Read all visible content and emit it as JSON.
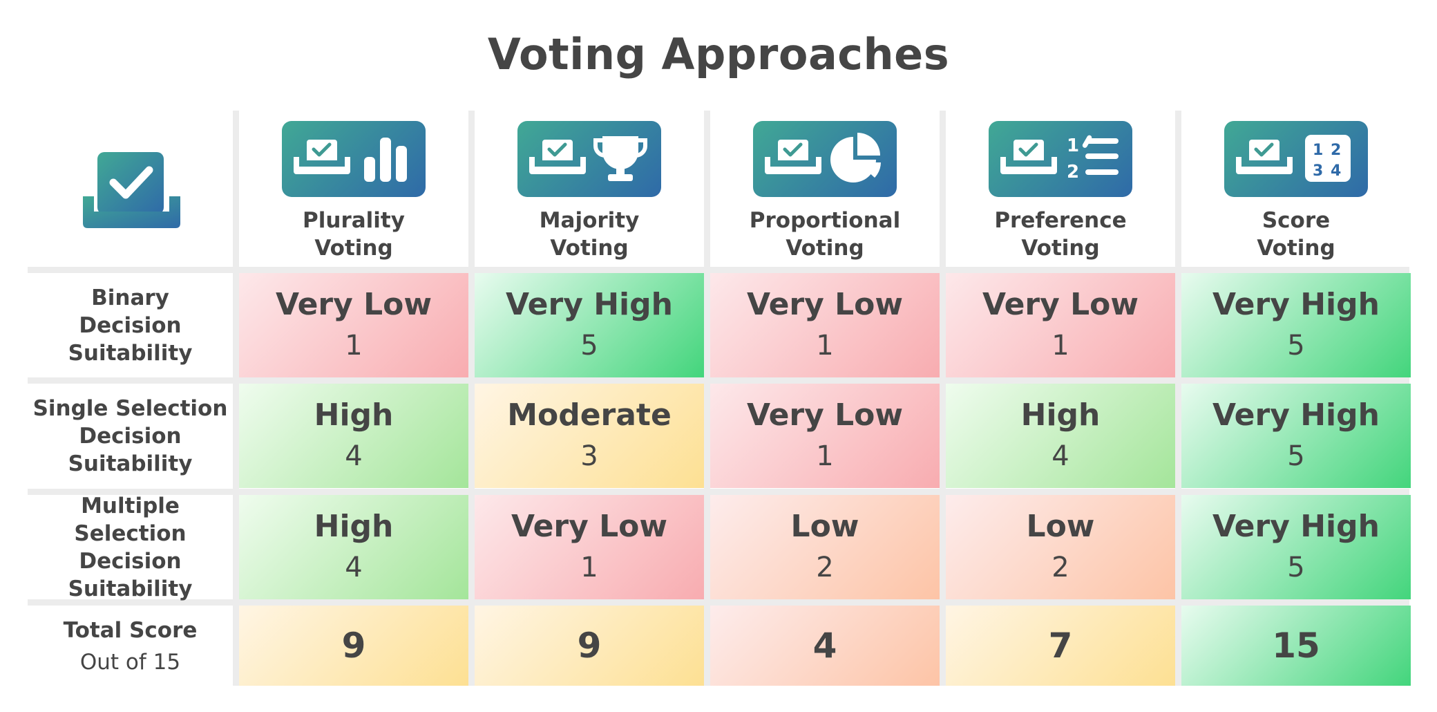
{
  "title": "Voting Approaches",
  "colors": {
    "very_low": "#f8acb0",
    "low": "#fdc4a6",
    "moderate": "#fde093",
    "high": "#a4e59a",
    "very_high": "#43d57c",
    "icon_gradient_start": "#41a895",
    "icon_gradient_end": "#2f6aa8",
    "text": "#454545"
  },
  "header_icon": "ballot-box-check-icon",
  "columns": [
    {
      "line1": "Plurality",
      "line2": "Voting",
      "icon": "bar-chart-icon"
    },
    {
      "line1": "Majority",
      "line2": "Voting",
      "icon": "trophy-icon"
    },
    {
      "line1": "Proportional",
      "line2": "Voting",
      "icon": "pie-chart-icon"
    },
    {
      "line1": "Preference",
      "line2": "Voting",
      "icon": "ranked-list-icon"
    },
    {
      "line1": "Score",
      "line2": "Voting",
      "icon": "number-grid-icon"
    }
  ],
  "rows": [
    {
      "label_lines": [
        "Binary",
        "Decision",
        "Suitability"
      ],
      "cells": [
        {
          "rating": "Very Low",
          "score": "1",
          "level": "very_low"
        },
        {
          "rating": "Very High",
          "score": "5",
          "level": "very_high"
        },
        {
          "rating": "Very Low",
          "score": "1",
          "level": "very_low"
        },
        {
          "rating": "Very Low",
          "score": "1",
          "level": "very_low"
        },
        {
          "rating": "Very High",
          "score": "5",
          "level": "very_high"
        }
      ]
    },
    {
      "label_lines": [
        "Single Selection",
        "Decision",
        "Suitability"
      ],
      "cells": [
        {
          "rating": "High",
          "score": "4",
          "level": "high"
        },
        {
          "rating": "Moderate",
          "score": "3",
          "level": "moderate"
        },
        {
          "rating": "Very Low",
          "score": "1",
          "level": "very_low"
        },
        {
          "rating": "High",
          "score": "4",
          "level": "high"
        },
        {
          "rating": "Very High",
          "score": "5",
          "level": "very_high"
        }
      ]
    },
    {
      "label_lines": [
        "Multiple Selection",
        "Decision",
        "Suitability"
      ],
      "cells": [
        {
          "rating": "High",
          "score": "4",
          "level": "high"
        },
        {
          "rating": "Very Low",
          "score": "1",
          "level": "very_low"
        },
        {
          "rating": "Low",
          "score": "2",
          "level": "low"
        },
        {
          "rating": "Low",
          "score": "2",
          "level": "low"
        },
        {
          "rating": "Very High",
          "score": "5",
          "level": "very_high"
        }
      ]
    }
  ],
  "total_row": {
    "label": "Total Score",
    "sublabel": "Out of 15",
    "cells": [
      {
        "value": "9",
        "level": "moderate"
      },
      {
        "value": "9",
        "level": "moderate"
      },
      {
        "value": "4",
        "level": "low"
      },
      {
        "value": "7",
        "level": "moderate"
      },
      {
        "value": "15",
        "level": "very_high"
      }
    ]
  }
}
